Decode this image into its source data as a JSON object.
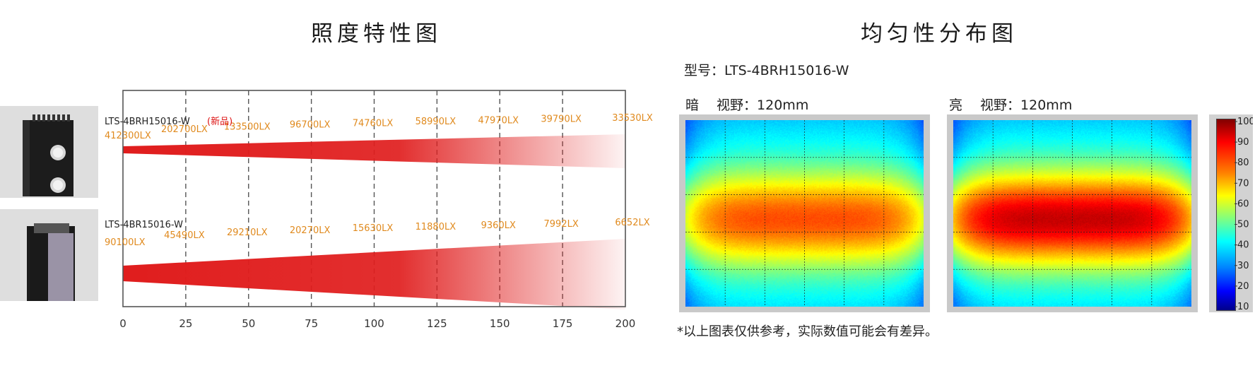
{
  "left_title": "照度特性图",
  "right_title": "均匀性分布图",
  "model_line": "型号：LTS-4BRH15016-W",
  "dark_label": "暗　 视野：120mm",
  "bright_label": "亮　 视野：120mm",
  "footnote": "*以上图表仅供参考，实际数值可能会有差异。",
  "colors": {
    "beam": "#e01d1d",
    "lux_label": "#e08a1e",
    "new_tag": "#d11111"
  },
  "chart_data": [
    {
      "type": "line",
      "x_ticks": [
        0,
        25,
        50,
        75,
        100,
        125,
        150,
        175,
        200
      ],
      "xlim": [
        0,
        200
      ],
      "grid": "dashed vertical",
      "series": [
        {
          "name": "LTS-4BRH15016-W",
          "tag": "(新品)",
          "x": [
            0,
            25,
            50,
            75,
            100,
            125,
            150,
            175,
            200
          ],
          "values": [
            412300,
            202700,
            133500,
            96700,
            74760,
            58990,
            47970,
            39790,
            33530
          ],
          "labels": [
            "412300LX",
            "202700LX",
            "133500LX",
            "96700LX",
            "74760LX",
            "58990LX",
            "47970LX",
            "39790LX",
            "33530LX"
          ]
        },
        {
          "name": "LTS-4BR15016-W",
          "x": [
            0,
            25,
            50,
            75,
            100,
            125,
            150,
            175,
            200
          ],
          "values": [
            90100,
            45490,
            29210,
            20270,
            15630,
            11880,
            9360,
            7992,
            6652
          ],
          "labels": [
            "90100LX",
            "45490LX",
            "29210LX",
            "20270LX",
            "15630LX",
            "11880LX",
            "9360LX",
            "7992LX",
            "6652LX"
          ]
        }
      ]
    },
    {
      "type": "heatmap",
      "title": "暗　 视野：120mm",
      "field_of_view": "120mm",
      "pattern": "horizontal elliptical band, max ~75 at center, ~45-55 at edges"
    },
    {
      "type": "heatmap",
      "title": "亮　 视野：120mm",
      "field_of_view": "120mm",
      "pattern": "horizontal elliptical band, max ~92 at center, ~45-55 at edges"
    },
    {
      "type": "colorbar",
      "ticks": [
        100,
        90,
        80,
        70,
        60,
        50,
        40,
        30,
        20,
        10
      ],
      "range": [
        10,
        100
      ],
      "colormap": "jet"
    }
  ]
}
